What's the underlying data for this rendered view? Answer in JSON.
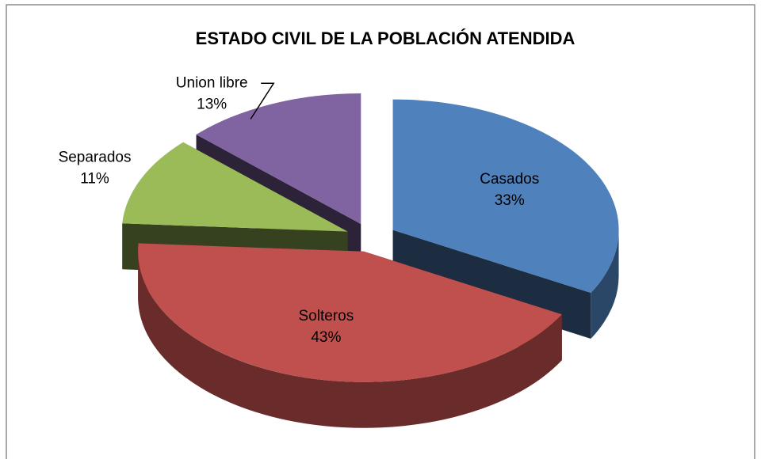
{
  "chart_data": {
    "type": "pie3d",
    "title": "ESTADO CIVIL DE LA POBLACIÓN ATENDIDA",
    "categories": [
      "Casados",
      "Solteros",
      "Separados",
      "Union libre"
    ],
    "values": [
      33,
      43,
      11,
      13
    ],
    "value_labels": [
      "33%",
      "43%",
      "11%",
      "13%"
    ],
    "colors": [
      "#4f81bd",
      "#c0504d",
      "#9bbb59",
      "#8064a2"
    ]
  }
}
